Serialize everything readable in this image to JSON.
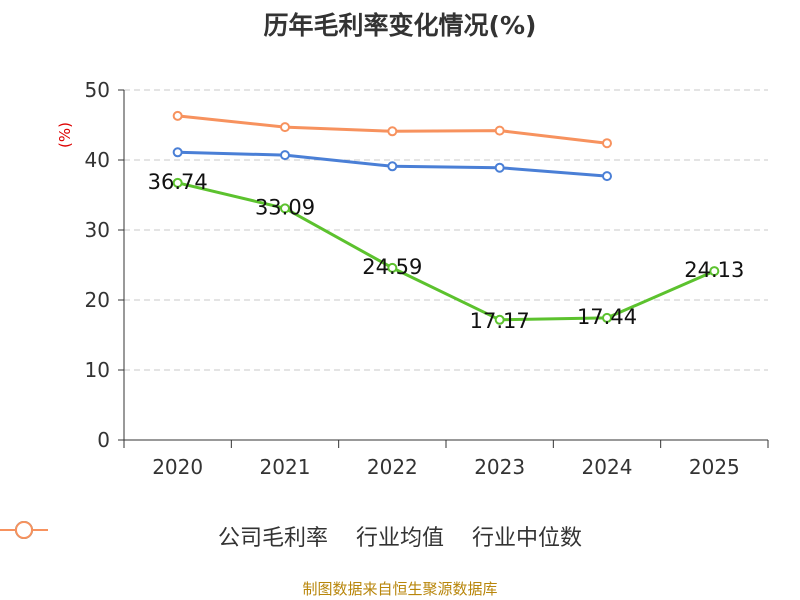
{
  "chart_data": {
    "type": "line",
    "title": "历年毛利率变化情况(%)",
    "yunit": "(%)",
    "categories": [
      "2020",
      "2021",
      "2022",
      "2023",
      "2024",
      "2025"
    ],
    "ylim": [
      0,
      50
    ],
    "yticks": [
      0,
      10,
      20,
      30,
      40,
      50
    ],
    "grid": true,
    "legend_position": "bottom",
    "series": [
      {
        "name": "公司毛利率",
        "color": "#5cc22e",
        "values": [
          36.74,
          33.09,
          24.59,
          17.17,
          17.44,
          24.13
        ],
        "labels": [
          "36.74",
          "33.09",
          "24.59",
          "17.17",
          "17.44",
          "24.13"
        ]
      },
      {
        "name": "行业均值",
        "color": "#4a7fd6",
        "values": [
          41.1,
          40.7,
          39.1,
          38.9,
          37.7,
          null
        ]
      },
      {
        "name": "行业中位数",
        "color": "#f7925e",
        "values": [
          46.3,
          44.7,
          44.1,
          44.2,
          42.4,
          null
        ]
      }
    ],
    "source": "制图数据来自恒生聚源数据库"
  }
}
